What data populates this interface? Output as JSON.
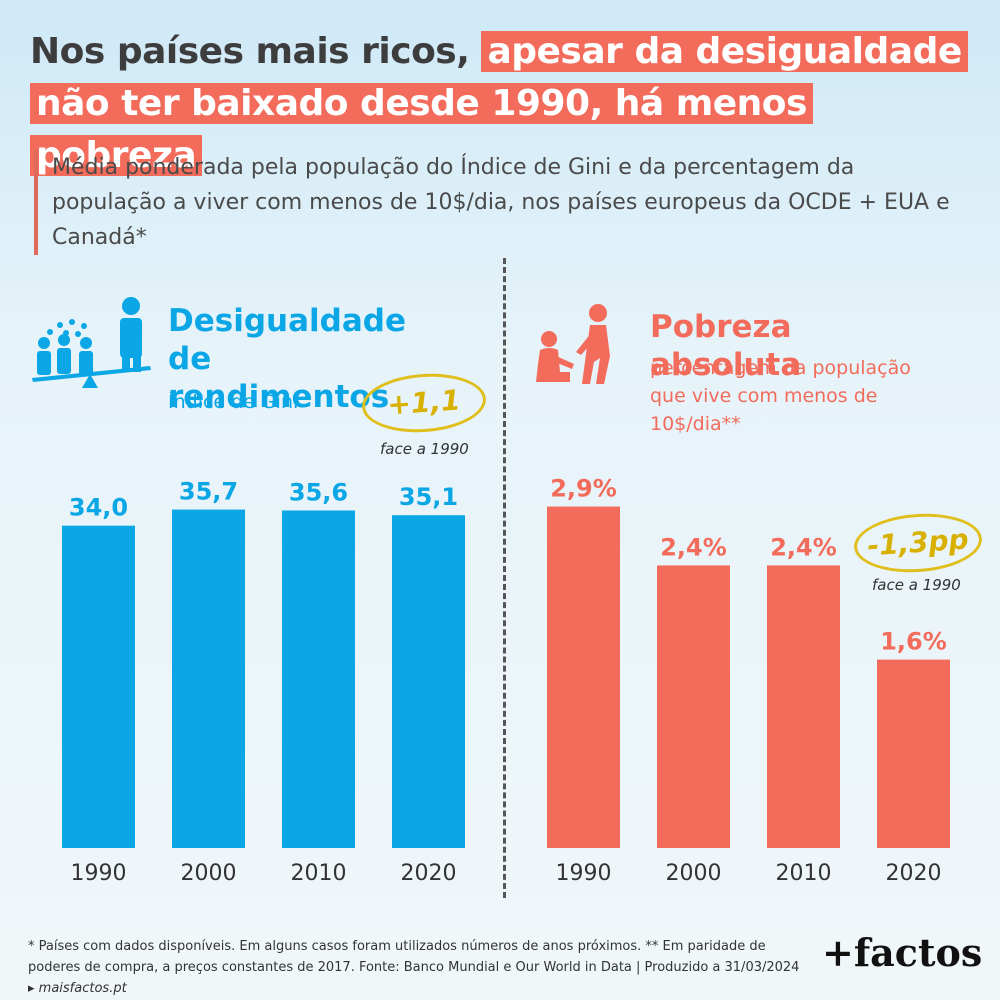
{
  "title": {
    "part1": "Nos países mais ricos,",
    "part2": "apesar da desigualdade não ter baixado desde 1990, há menos pobreza"
  },
  "subtitle": "Média ponderada pela população do Índice de Gini e da percentagem da população a viver com menos de 10$/dia, nos países europeus da OCDE + EUA e Canadá*",
  "colors": {
    "gini": "#0aa6e6",
    "poverty": "#f36b5b",
    "badge": "#d8b000"
  },
  "icons": {
    "left": "people-seesaw-icon",
    "right": "adult-helping-child-icon"
  },
  "chart_data": [
    {
      "type": "bar",
      "title": "Desigualdade de rendimentos",
      "subtitle": "Índice de Gini",
      "categories": [
        "1990",
        "2000",
        "2010",
        "2020"
      ],
      "values": [
        34.0,
        35.7,
        35.6,
        35.1
      ],
      "value_labels": [
        "34,0",
        "35,7",
        "35,6",
        "35,1"
      ],
      "ylim": [
        0,
        38.5
      ],
      "change_label": "+1,1",
      "change_note": "face a 1990",
      "color": "#0aa6e6"
    },
    {
      "type": "bar",
      "title": "Pobreza absoluta",
      "subtitle": "percentagem da população que vive com menos de 10$/dia**",
      "categories": [
        "1990",
        "2000",
        "2010",
        "2020"
      ],
      "values": [
        2.9,
        2.4,
        2.4,
        1.6
      ],
      "value_labels": [
        "2,9%",
        "2,4%",
        "2,4%",
        "1,6%"
      ],
      "ylim": [
        0,
        3.1
      ],
      "change_label": "-1,3pp",
      "change_note": "face a 1990",
      "color": "#f36b5b"
    }
  ],
  "footnote": {
    "text": "* Países com dados disponíveis. Em alguns casos foram utilizados números de anos próximos. ** Em paridade de poderes de compra, a preços constantes de 2017. Fonte: Banco Mundial e Our World in Data | Produzido a 31/03/2024 ▸",
    "site": "maisfactos.pt"
  },
  "logo": "+factos"
}
